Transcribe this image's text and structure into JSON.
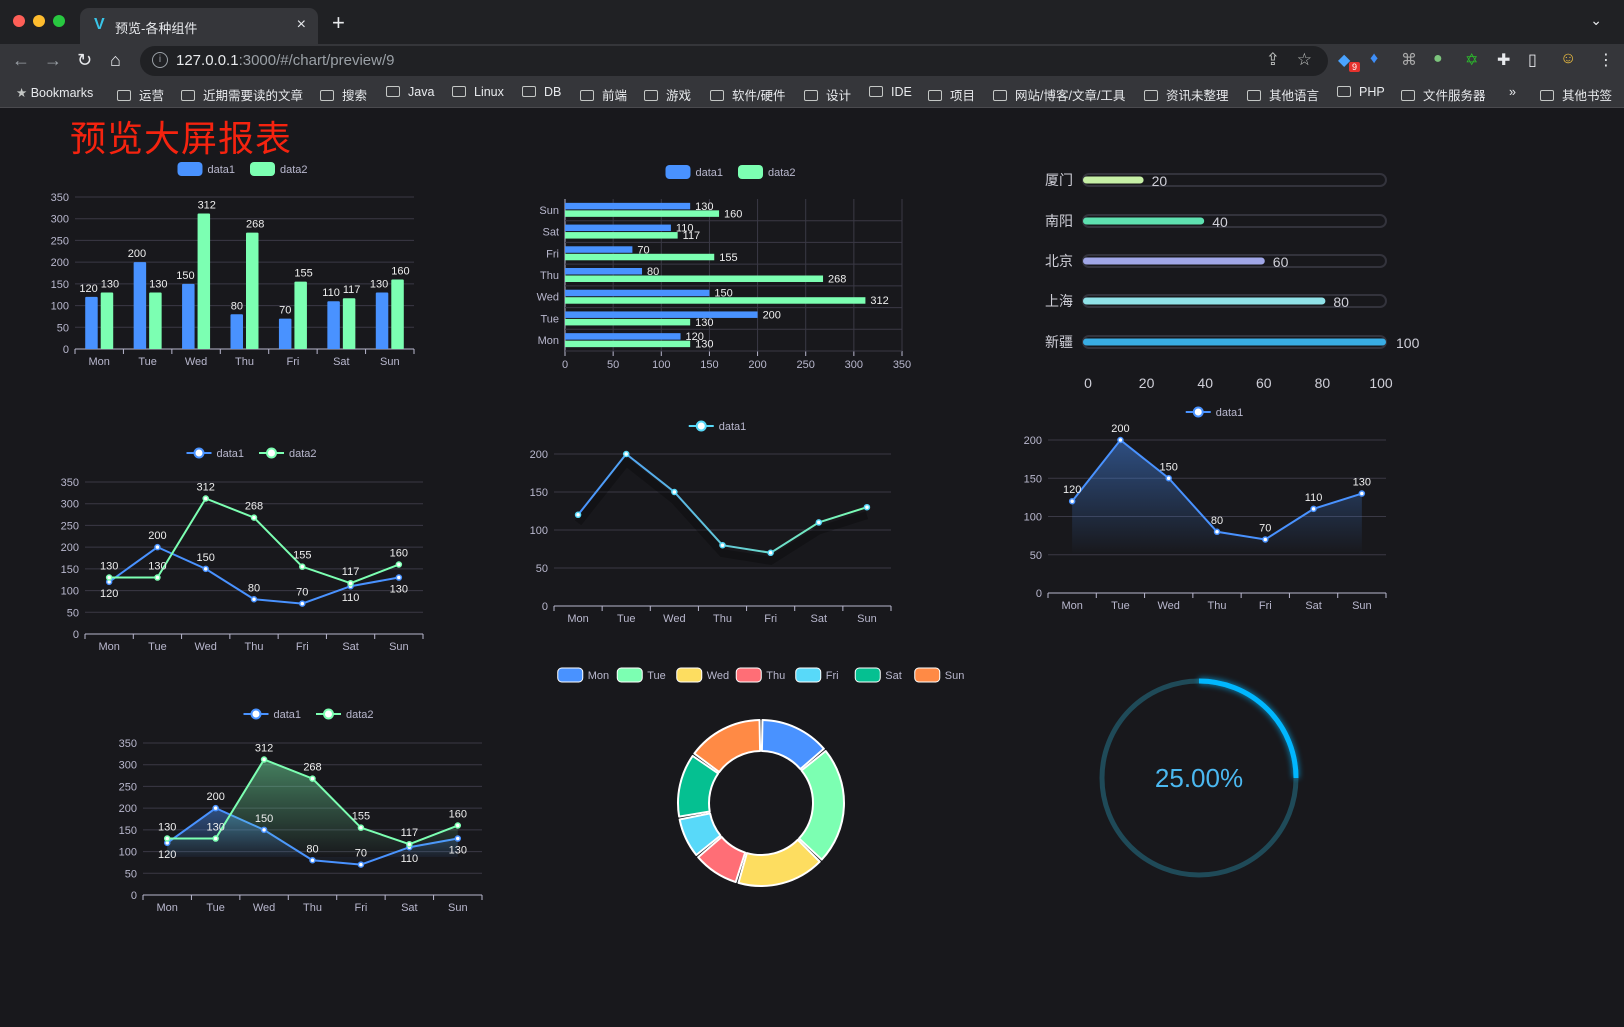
{
  "browser": {
    "tab_title": "预览-各种组件",
    "tab_close": "×",
    "new_tab": "+",
    "tab_menu": "⌄",
    "url_host": "127.0.0.1",
    "url_rest": ":3000/#/chart/preview/9",
    "extension_badge": "9",
    "bookmarks": [
      "Bookmarks",
      "运营",
      "近期需要读的文章",
      "搜索",
      "Java",
      "Linux",
      "DB",
      "前端",
      "游戏",
      "软件/硬件",
      "设计",
      "IDE",
      "项目",
      "网站/博客/文章/工具",
      "资讯未整理",
      "其他语言",
      "PHP",
      "文件服务器"
    ],
    "more": "»",
    "other_bookmarks": "其他书签"
  },
  "page": {
    "title": "预览大屏报表"
  },
  "chart_data": [
    {
      "type": "bar",
      "categories": [
        "Mon",
        "Tue",
        "Wed",
        "Thu",
        "Fri",
        "Sat",
        "Sun"
      ],
      "ylim": [
        0,
        350
      ],
      "yticks": [
        0,
        50,
        100,
        150,
        200,
        250,
        300,
        350
      ],
      "grid": true,
      "legend": "top-center",
      "series": [
        {
          "name": "data1",
          "color": "#4992ff",
          "values": [
            120,
            200,
            150,
            80,
            70,
            110,
            130
          ]
        },
        {
          "name": "data2",
          "color": "#7cffb2",
          "values": [
            130,
            130,
            312,
            268,
            155,
            117,
            160
          ]
        }
      ]
    },
    {
      "type": "bar",
      "orientation": "horizontal",
      "categories": [
        "Mon",
        "Tue",
        "Wed",
        "Thu",
        "Fri",
        "Sat",
        "Sun"
      ],
      "xlim": [
        0,
        350
      ],
      "xticks": [
        0,
        50,
        100,
        150,
        200,
        250,
        300,
        350
      ],
      "grid": true,
      "legend": "top-center",
      "series": [
        {
          "name": "data1",
          "color": "#4992ff",
          "values": [
            120,
            200,
            150,
            80,
            70,
            110,
            130
          ]
        },
        {
          "name": "data2",
          "color": "#7cffb2",
          "values": [
            130,
            130,
            312,
            268,
            155,
            117,
            160
          ]
        }
      ]
    },
    {
      "type": "bar",
      "orientation": "horizontal",
      "style": "progress",
      "categories": [
        "厦门",
        "南阳",
        "北京",
        "上海",
        "新疆"
      ],
      "values": [
        20,
        40,
        60,
        80,
        100
      ],
      "colors": [
        "#c6efa5",
        "#5ee0b0",
        "#a1a7e8",
        "#90e2e8",
        "#39ade4"
      ],
      "xlim": [
        0,
        100
      ],
      "xticks": [
        0,
        20,
        40,
        60,
        80,
        100
      ]
    },
    {
      "type": "line",
      "categories": [
        "Mon",
        "Tue",
        "Wed",
        "Thu",
        "Fri",
        "Sat",
        "Sun"
      ],
      "ylim": [
        0,
        350
      ],
      "yticks": [
        0,
        50,
        100,
        150,
        200,
        250,
        300,
        350
      ],
      "grid": true,
      "legend": "top-center",
      "series": [
        {
          "name": "data1",
          "color": "#4992ff",
          "values": [
            120,
            200,
            150,
            80,
            70,
            110,
            130
          ]
        },
        {
          "name": "data2",
          "color": "#7cffb2",
          "values": [
            130,
            130,
            312,
            268,
            155,
            117,
            160
          ]
        }
      ]
    },
    {
      "type": "line",
      "categories": [
        "Mon",
        "Tue",
        "Wed",
        "Thu",
        "Fri",
        "Sat",
        "Sun"
      ],
      "ylim": [
        0,
        200
      ],
      "yticks": [
        0,
        50,
        100,
        150,
        200
      ],
      "grid": true,
      "legend": "top-center",
      "gradient": [
        "#4992ff",
        "#7cffb2"
      ],
      "series": [
        {
          "name": "data1",
          "color": "#58d9f9",
          "values": [
            120,
            200,
            150,
            80,
            70,
            110,
            130
          ]
        }
      ]
    },
    {
      "type": "area",
      "categories": [
        "Mon",
        "Tue",
        "Wed",
        "Thu",
        "Fri",
        "Sat",
        "Sun"
      ],
      "ylim": [
        0,
        200
      ],
      "yticks": [
        0,
        50,
        100,
        150,
        200
      ],
      "grid": true,
      "legend": "top-center",
      "series": [
        {
          "name": "data1",
          "color": "#4992ff",
          "values": [
            120,
            200,
            150,
            80,
            70,
            110,
            130
          ]
        }
      ]
    },
    {
      "type": "area",
      "categories": [
        "Mon",
        "Tue",
        "Wed",
        "Thu",
        "Fri",
        "Sat",
        "Sun"
      ],
      "ylim": [
        0,
        350
      ],
      "yticks": [
        0,
        50,
        100,
        150,
        200,
        250,
        300,
        350
      ],
      "grid": true,
      "legend": "top-center",
      "series": [
        {
          "name": "data1",
          "color": "#4992ff",
          "values": [
            120,
            200,
            150,
            80,
            70,
            110,
            130
          ]
        },
        {
          "name": "data2",
          "color": "#7cffb2",
          "values": [
            130,
            130,
            312,
            268,
            155,
            117,
            160
          ]
        }
      ]
    },
    {
      "type": "pie",
      "style": "donut",
      "categories": [
        "Mon",
        "Tue",
        "Wed",
        "Thu",
        "Fri",
        "Sat",
        "Sun"
      ],
      "values": [
        120,
        200,
        150,
        80,
        70,
        110,
        130
      ],
      "colors": [
        "#4992ff",
        "#7cffb2",
        "#fddd60",
        "#ff6e76",
        "#58d9f9",
        "#05c091",
        "#ff8a45"
      ],
      "legend": "top-center"
    },
    {
      "type": "gauge",
      "value": 0.25,
      "label": "25.00%",
      "color": "#00b7ff",
      "track_color": "#1f4a58"
    }
  ]
}
